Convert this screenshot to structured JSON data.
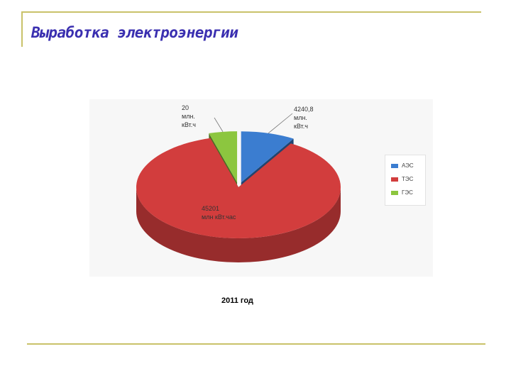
{
  "slide": {
    "title": "Выработка электроэнергии",
    "caption": "2011 год"
  },
  "colors": {
    "rule": "#c9c26a",
    "title": "#3a2fb0",
    "aes": "#3b7dd0",
    "tes": "#d23d3d",
    "ges": "#8cc63f"
  },
  "chart_data": {
    "type": "pie",
    "title": "",
    "categories": [
      "АЭС",
      "ТЭС",
      "ГЭС"
    ],
    "values": [
      4240.8,
      45201,
      20
    ],
    "data_labels": [
      "4240,8 млн. кВт.ч",
      "45201 млн кВт.час",
      "20 млн. кВт.ч"
    ],
    "legend_position": "right",
    "three_d": true,
    "exploded": true
  },
  "labels": {
    "aes": [
      "4240,8",
      "млн.",
      "кВт.ч"
    ],
    "tes": [
      "45201",
      "млн кВт.час"
    ],
    "ges": [
      "20",
      "млн.",
      "кВт.ч"
    ]
  },
  "legend": [
    {
      "name": "АЭС",
      "color": "#3b7dd0"
    },
    {
      "name": "ТЭС",
      "color": "#d23d3d"
    },
    {
      "name": "ГЭС",
      "color": "#8cc63f"
    }
  ]
}
